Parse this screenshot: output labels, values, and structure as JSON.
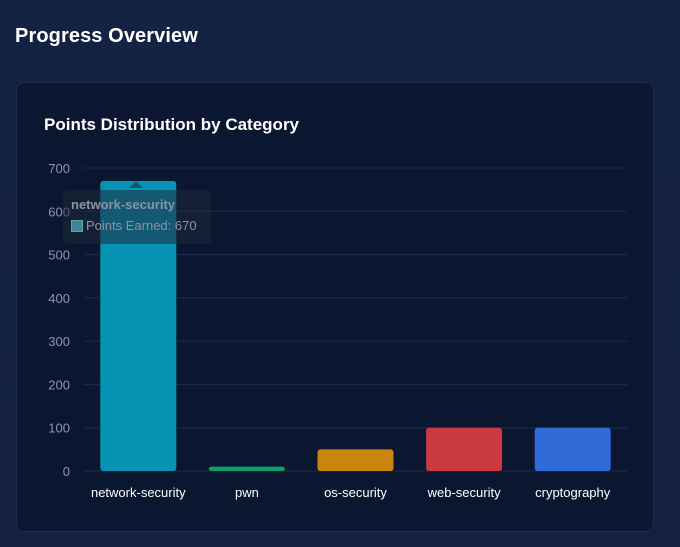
{
  "page": {
    "title": "Progress Overview"
  },
  "card": {
    "title": "Points Distribution by Category"
  },
  "tooltip": {
    "title": "network-security",
    "series_label": "Points Earned",
    "value": 670,
    "text": "Points Earned: 670"
  },
  "colors": {
    "background": "#13203f",
    "card": "#0b1730",
    "grid": "#1f2d4b"
  },
  "chart_data": {
    "type": "bar",
    "title": "Points Distribution by Category",
    "categories": [
      "network-security",
      "pwn",
      "os-security",
      "web-security",
      "cryptography"
    ],
    "series": [
      {
        "name": "Points Earned",
        "values": [
          670,
          10,
          50,
          100,
          100
        ],
        "colors": [
          "#0793b3",
          "#0e9e6c",
          "#c9860d",
          "#c9393f",
          "#2f6ad6"
        ]
      }
    ],
    "yticks": [
      0,
      100,
      200,
      300,
      400,
      500,
      600,
      700
    ],
    "ylim": [
      0,
      700
    ],
    "grid": true,
    "legend": "none",
    "xlabel": "",
    "ylabel": ""
  }
}
